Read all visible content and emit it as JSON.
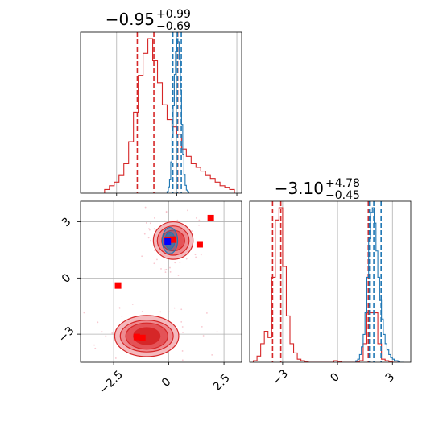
{
  "chart_data": {
    "type": "corner",
    "colors": {
      "red": "#d62728",
      "blue": "#1f77b4",
      "marker": "#ff0000",
      "grid": "#b0b0b0"
    },
    "panels": [
      {
        "id": "hist-param1",
        "type": "histogram",
        "title": {
          "main": "−0.95",
          "plus": "+0.99",
          "minus": "−0.69"
        },
        "x_range": [
          -4.0,
          2.7
        ],
        "x_ticks": [
          -2.5,
          0.0,
          2.5
        ],
        "series": [
          {
            "name": "",
            "color": "#d62728",
            "bin_edges": [
              -3.0,
              -2.8,
              -2.6,
              -2.4,
              -2.2,
              -2.0,
              -1.8,
              -1.6,
              -1.4,
              -1.2,
              -1.0,
              -0.8,
              -0.6,
              -0.4,
              -0.2,
              0.0,
              0.2,
              0.4,
              0.6,
              0.8,
              1.0,
              1.2,
              1.4,
              1.6,
              1.8,
              2.0,
              2.2,
              2.4
            ],
            "counts": [
              0.005,
              0.01,
              0.015,
              0.025,
              0.04,
              0.07,
              0.11,
              0.16,
              0.19,
              0.21,
              0.18,
              0.15,
              0.12,
              0.1,
              0.09,
              0.08,
              0.06,
              0.05,
              0.04,
              0.035,
              0.03,
              0.025,
              0.02,
              0.015,
              0.01,
              0.008,
              0.005
            ],
            "quantiles": [
              -1.64,
              -0.95,
              0.04
            ]
          },
          {
            "name": "",
            "color": "#1f77b4",
            "bin_edges": [
              -0.4,
              -0.35,
              -0.3,
              -0.25,
              -0.2,
              -0.15,
              -0.1,
              -0.05,
              0.0,
              0.05,
              0.1,
              0.15,
              0.2,
              0.25,
              0.3,
              0.35,
              0.4,
              0.45,
              0.5
            ],
            "counts": [
              0.01,
              0.04,
              0.09,
              0.2,
              0.36,
              0.56,
              0.76,
              0.91,
              0.99,
              0.97,
              0.86,
              0.66,
              0.44,
              0.25,
              0.12,
              0.05,
              0.02,
              0.01
            ],
            "quantiles": [
              -0.16,
              0.03,
              0.19
            ]
          }
        ]
      },
      {
        "id": "hist-param2",
        "type": "histogram",
        "title": {
          "main": "−3.10",
          "plus": "+4.78",
          "minus": "−0.45"
        },
        "x_range": [
          -4.8,
          4.0
        ],
        "x_ticks": [
          -3,
          0,
          3
        ],
        "series": [
          {
            "name": "",
            "color": "#d62728",
            "bin_edges": [
              -4.6,
              -4.4,
              -4.2,
              -4.0,
              -3.8,
              -3.6,
              -3.4,
              -3.2,
              -3.0,
              -2.8,
              -2.6,
              -2.4,
              -2.2,
              -2.0,
              -1.8,
              -1.6,
              -1.4,
              -1.2,
              -1.0,
              -0.8,
              -0.6,
              -0.4,
              -0.2,
              0.0,
              0.2,
              0.4,
              0.6,
              0.8,
              1.0,
              1.2,
              1.4,
              1.6,
              1.8,
              2.0,
              2.2,
              2.4,
              2.6,
              2.8,
              3.0,
              3.2,
              3.4,
              3.6
            ],
            "counts": [
              0.01,
              0.04,
              0.12,
              0.2,
              0.16,
              0.55,
              0.92,
              1.0,
              0.62,
              0.3,
              0.12,
              0.06,
              0.02,
              0.01,
              0.005,
              0.0,
              0.0,
              0.0,
              0.0,
              0.0,
              0.0,
              0.0,
              0.01,
              0.005,
              0.0,
              0.0,
              0.0,
              0.0,
              0.005,
              0.01,
              0.12,
              0.32,
              0.32,
              0.32,
              0.12,
              0.02,
              0.01,
              0.005,
              0.0,
              0.0,
              0.0
            ],
            "quantiles": [
              -3.55,
              -3.1,
              1.68
            ]
          },
          {
            "name": "",
            "color": "#1f77b4",
            "bin_edges": [
              1.0,
              1.1,
              1.2,
              1.3,
              1.4,
              1.5,
              1.6,
              1.7,
              1.8,
              1.9,
              2.0,
              2.1,
              2.2,
              2.3,
              2.4,
              2.5,
              2.6,
              2.7,
              2.8,
              2.9,
              3.0,
              3.1,
              3.2,
              3.3,
              3.4,
              3.5,
              3.6
            ],
            "counts": [
              0.01,
              0.02,
              0.05,
              0.1,
              0.18,
              0.32,
              0.55,
              0.8,
              0.97,
              1.0,
              0.9,
              0.72,
              0.55,
              0.4,
              0.28,
              0.18,
              0.12,
              0.08,
              0.05,
              0.03,
              0.02,
              0.01,
              0.01,
              0.005,
              0.0,
              0.0
            ],
            "quantiles": [
              1.74,
              1.98,
              2.38
            ]
          }
        ]
      },
      {
        "id": "scatter-2d",
        "type": "contour-scatter",
        "x_range": [
          -4.0,
          3.3
        ],
        "y_range": [
          -4.5,
          4.1
        ],
        "x_ticks": [
          -2.5,
          0.0,
          2.5
        ],
        "y_ticks": [
          -3,
          0,
          3
        ],
        "red_blobs": [
          {
            "cx": -1.0,
            "cy": -3.1,
            "rx_levels": [
              1.45,
              1.2,
              0.95,
              0.6
            ],
            "ry_levels": [
              1.1,
              0.85,
              0.7,
              0.45
            ]
          },
          {
            "cx": 0.2,
            "cy": 2.0,
            "rx_levels": [
              0.9,
              0.72,
              0.52
            ],
            "ry_levels": [
              1.0,
              0.78,
              0.55
            ]
          }
        ],
        "blue_blob": {
          "cx": 0.05,
          "cy": 2.0,
          "rx_levels": [
            0.35,
            0.22
          ],
          "ry_levels": [
            0.7,
            0.45
          ]
        },
        "red_markers": [
          {
            "x": -2.3,
            "y": -0.4
          },
          {
            "x": 1.9,
            "y": 3.2
          },
          {
            "x": 1.4,
            "y": 1.8
          },
          {
            "x": -1.45,
            "y": -3.15
          },
          {
            "x": -1.2,
            "y": -3.2
          },
          {
            "x": -0.05,
            "y": 2.0
          },
          {
            "x": 0.2,
            "y": 2.05
          }
        ],
        "blue_markers": [
          {
            "x": -0.05,
            "y": 1.95
          }
        ]
      }
    ]
  }
}
